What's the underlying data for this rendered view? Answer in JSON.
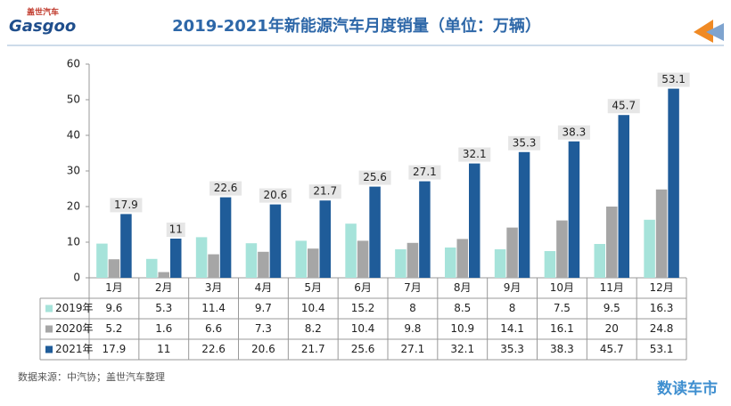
{
  "header": {
    "logo": "Gasgoo",
    "logo_cn": "盖世汽车",
    "brand": "数读车市"
  },
  "chart_data": {
    "type": "bar",
    "title": "2019-2021年新能源汽车月度销量（单位：万辆）",
    "source": "数据来源：中汽协；盖世汽车整理",
    "categories": [
      "1月",
      "2月",
      "3月",
      "4月",
      "5月",
      "6月",
      "7月",
      "8月",
      "9月",
      "10月",
      "11月",
      "12月"
    ],
    "series": [
      {
        "name": "2019年",
        "color": "#a6e3da",
        "values": [
          9.6,
          5.3,
          11.4,
          9.7,
          10.4,
          15.2,
          8,
          8.5,
          8,
          7.5,
          9.5,
          16.3
        ]
      },
      {
        "name": "2020年",
        "color": "#a6a6a6",
        "values": [
          5.2,
          1.6,
          6.6,
          7.3,
          8.2,
          10.4,
          9.8,
          10.9,
          14.1,
          16.1,
          20,
          24.8
        ]
      },
      {
        "name": "2021年",
        "color": "#1f5c99",
        "values": [
          17.9,
          11,
          22.6,
          20.6,
          21.7,
          25.6,
          27.1,
          32.1,
          35.3,
          38.3,
          45.7,
          53.1
        ]
      }
    ],
    "labeled_series": 2,
    "ylim": [
      0,
      60
    ],
    "yticks": [
      0,
      10,
      20,
      30,
      40,
      50,
      60
    ],
    "grid": false
  }
}
